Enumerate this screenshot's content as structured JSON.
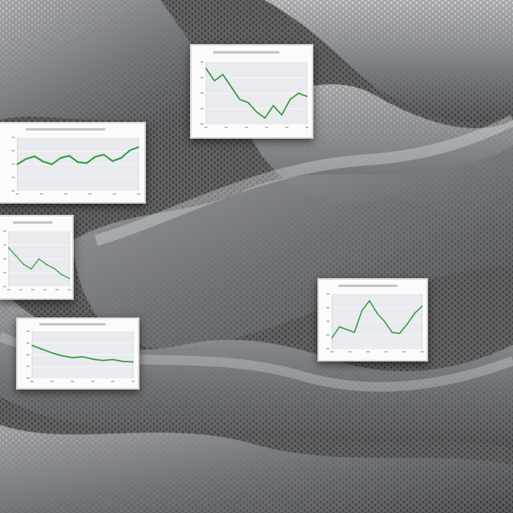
{
  "scene": {
    "description_name": "textured-gray-landscape",
    "palette": {
      "dark": "#2b2d2e",
      "mid": "#6f7274",
      "light": "#d8dadb",
      "line_green": "#2f9a3c",
      "light_green": "#a8d0a0",
      "plot_bg": "#e9ebef"
    }
  },
  "chart_data": [
    {
      "id": "chart-top-center",
      "type": "line",
      "title": "",
      "xlabel": "",
      "ylabel": "",
      "x": [
        0,
        1,
        2,
        3,
        4,
        5,
        6,
        7,
        8,
        9,
        10,
        11,
        12
      ],
      "values": [
        9,
        7,
        8,
        6,
        4,
        3.5,
        2,
        1,
        3,
        1.5,
        4,
        5,
        4.5
      ],
      "ylim": [
        0,
        10
      ]
    },
    {
      "id": "chart-left-upper",
      "type": "line",
      "title": "",
      "xlabel": "",
      "ylabel": "",
      "x": [
        0,
        1,
        2,
        3,
        4,
        5,
        6,
        7,
        8,
        9,
        10,
        11,
        12,
        13,
        14
      ],
      "values": [
        5,
        6,
        6.5,
        5.5,
        5,
        6.2,
        6.6,
        5.4,
        5.2,
        6.4,
        6.8,
        5.6,
        6.2,
        7.6,
        8.2
      ],
      "ylim": [
        0,
        10
      ]
    },
    {
      "id": "chart-left-middle",
      "type": "line",
      "title": "",
      "xlabel": "",
      "ylabel": "",
      "x": [
        0,
        1,
        2,
        3,
        4,
        5,
        6,
        7,
        8
      ],
      "values": [
        7,
        5.5,
        4,
        3.2,
        5,
        4,
        3.3,
        2.2,
        1.5
      ],
      "ylim": [
        0,
        10
      ]
    },
    {
      "id": "chart-left-lower",
      "type": "line",
      "title": "",
      "xlabel": "",
      "ylabel": "",
      "x": [
        0,
        1,
        2,
        3,
        4,
        5,
        6,
        7,
        8,
        9,
        10
      ],
      "values": [
        7,
        6.2,
        5.4,
        4.8,
        4.4,
        4.6,
        4.1,
        3.8,
        4.0,
        3.6,
        3.5
      ],
      "ylim": [
        0,
        10
      ]
    },
    {
      "id": "chart-right-middle",
      "type": "line",
      "title": "",
      "xlabel": "",
      "ylabel": "",
      "x": [
        0,
        1,
        2,
        3,
        4,
        5,
        6,
        7,
        8,
        9,
        10,
        11,
        12
      ],
      "values": [
        2,
        4,
        3.5,
        3,
        7,
        8.8,
        6.5,
        5,
        3,
        2.8,
        4.5,
        6.5,
        7.8
      ],
      "ylim": [
        0,
        10
      ]
    }
  ]
}
